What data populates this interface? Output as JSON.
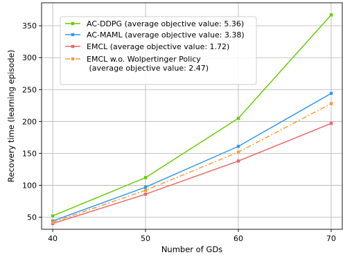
{
  "chart_data": {
    "type": "line",
    "title": "",
    "xlabel": "Number of GDs",
    "ylabel": "Recovery time (learning episode)",
    "x": [
      40,
      50,
      60,
      70
    ],
    "xlim": [
      38.8,
      71.2
    ],
    "ylim": [
      31,
      386
    ],
    "xticks": [
      40,
      50,
      60,
      70
    ],
    "yticks": [
      50,
      100,
      150,
      200,
      250,
      300,
      350
    ],
    "grid": true,
    "legend_position": "top-left",
    "series": [
      {
        "name": "AC-DDPG (average objective value: 5.36)",
        "legend_lines": [
          "AC-DDPG (average objective value: 5.36)"
        ],
        "values": [
          52,
          112,
          205,
          367
        ],
        "color": "#66cc00",
        "line_style": "solid",
        "marker": "square"
      },
      {
        "name": "AC-MAML (average objective value: 3.38)",
        "legend_lines": [
          "AC-MAML (average objective value: 3.38)"
        ],
        "values": [
          44,
          97,
          161,
          244
        ],
        "color": "#3399ee",
        "line_style": "solid",
        "marker": "square"
      },
      {
        "name": "EMCL (average objective value: 1.72)",
        "legend_lines": [
          "EMCL (average objective value: 1.72)"
        ],
        "values": [
          40,
          86,
          138,
          197
        ],
        "color": "#ee6666",
        "line_style": "solid",
        "marker": "square"
      },
      {
        "name": "EMCL w.o. Wolpertinger Policy (average objective value: 2.47)",
        "legend_lines": [
          "EMCL w.o. Wolpertinger Policy",
          " (average objective value: 2.47)"
        ],
        "values": [
          42,
          92,
          152,
          228
        ],
        "color": "#ff9933",
        "line_style": "dashdot",
        "marker": "square"
      }
    ]
  }
}
